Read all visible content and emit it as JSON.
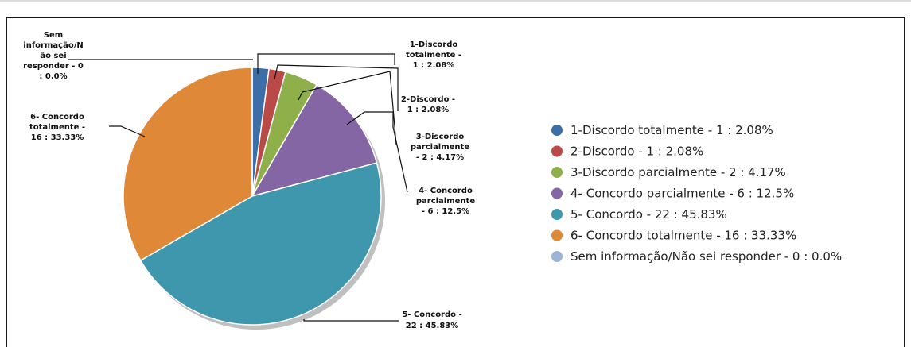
{
  "chart_data": {
    "type": "pie",
    "title": "",
    "slices": [
      {
        "label": "1-Discordo totalmente  - 1 : 2.08%",
        "value": 1,
        "percent": 2.08,
        "color": "#3d6ea8",
        "callout": [
          "1-Discordo",
          "totalmente  -",
          "1 : 2.08%"
        ]
      },
      {
        "label": "2-Discordo - 1 : 2.08%",
        "value": 1,
        "percent": 2.08,
        "color": "#b94a48",
        "callout": [
          "2-Discordo -",
          "1 : 2.08%"
        ]
      },
      {
        "label": "3-Discordo parcialmente  - 2 : 4.17%",
        "value": 2,
        "percent": 4.17,
        "color": "#8faf4a",
        "callout": [
          "3-Discordo",
          "parcialmente",
          "- 2 : 4.17%"
        ]
      },
      {
        "label": "4- Concordo parcialmente  - 6 : 12.5%",
        "value": 6,
        "percent": 12.5,
        "color": "#8566a5",
        "callout": [
          "4- Concordo",
          "parcialmente",
          "- 6 : 12.5%"
        ]
      },
      {
        "label": "5- Concordo - 22 : 45.83%",
        "value": 22,
        "percent": 45.83,
        "color": "#3f97ae",
        "callout": [
          "5- Concordo -",
          "22 : 45.83%"
        ]
      },
      {
        "label": "6- Concordo totalmente  - 16 : 33.33%",
        "value": 16,
        "percent": 33.33,
        "color": "#df8838",
        "callout": [
          "6- Concordo",
          "totalmente  -",
          "16 : 33.33%"
        ]
      },
      {
        "label": "Sem informação/Não sei responder - 0 : 0.0%",
        "value": 0,
        "percent": 0.0,
        "color": "#9db4d6",
        "callout": [
          "Sem",
          "informação/N",
          "ão sei",
          "responder - 0",
          ": 0.0%"
        ]
      }
    ],
    "legend_position": "right"
  }
}
